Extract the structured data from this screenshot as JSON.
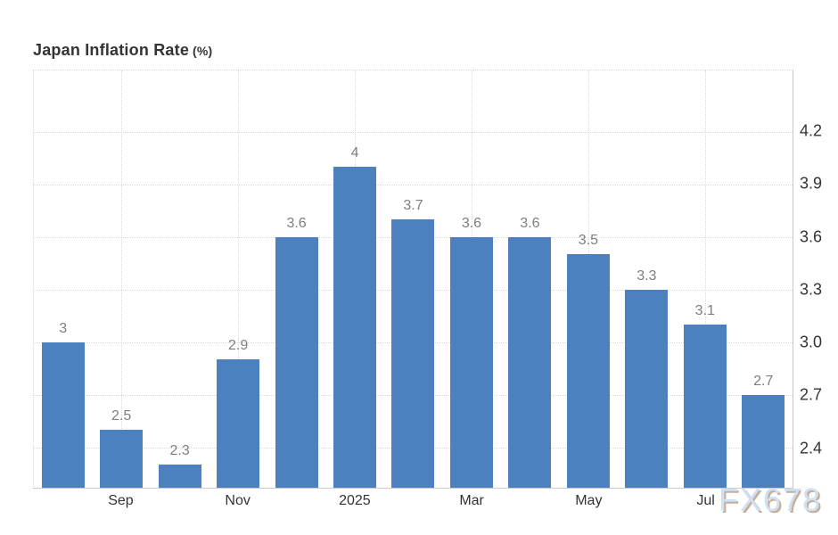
{
  "title": {
    "main": "Japan Inflation Rate",
    "unit": "(%)"
  },
  "watermark": "FX678",
  "colors": {
    "bar": "#4d80be",
    "grid": "#d9d9d9",
    "axis_line": "#cccccc",
    "tick_label": "#333333",
    "value_label": "#7e7e7e",
    "title": "#333333",
    "watermark_fill": "#cde0f4",
    "watermark_shadow": "#c9ae97"
  },
  "chart_data": {
    "type": "bar",
    "title": "Japan Inflation Rate (%)",
    "values": [
      3,
      2.5,
      2.3,
      2.9,
      3.6,
      4,
      3.7,
      3.6,
      3.6,
      3.5,
      3.3,
      3.1,
      2.7
    ],
    "value_labels": [
      "3",
      "2.5",
      "2.3",
      "2.9",
      "3.6",
      "4",
      "3.7",
      "3.6",
      "3.6",
      "3.5",
      "3.3",
      "3.1",
      "2.7"
    ],
    "x_tick_labels": [
      {
        "index": 1,
        "label": "Sep"
      },
      {
        "index": 3,
        "label": "Nov"
      },
      {
        "index": 5,
        "label": "2025"
      },
      {
        "index": 7,
        "label": "Mar"
      },
      {
        "index": 9,
        "label": "May"
      },
      {
        "index": 11,
        "label": "Jul"
      }
    ],
    "y_ticks": [
      4.2,
      3.9,
      3.6,
      3.3,
      3.0,
      2.7,
      2.4
    ],
    "y_tick_labels": [
      "4.2",
      "3.9",
      "3.6",
      "3.3",
      "3.0",
      "2.7",
      "2.4"
    ],
    "ylim": [
      2.17,
      4.55
    ],
    "xlabel": "",
    "ylabel": "",
    "grid": "dotted",
    "legend": false,
    "y_axis_side": "right"
  }
}
